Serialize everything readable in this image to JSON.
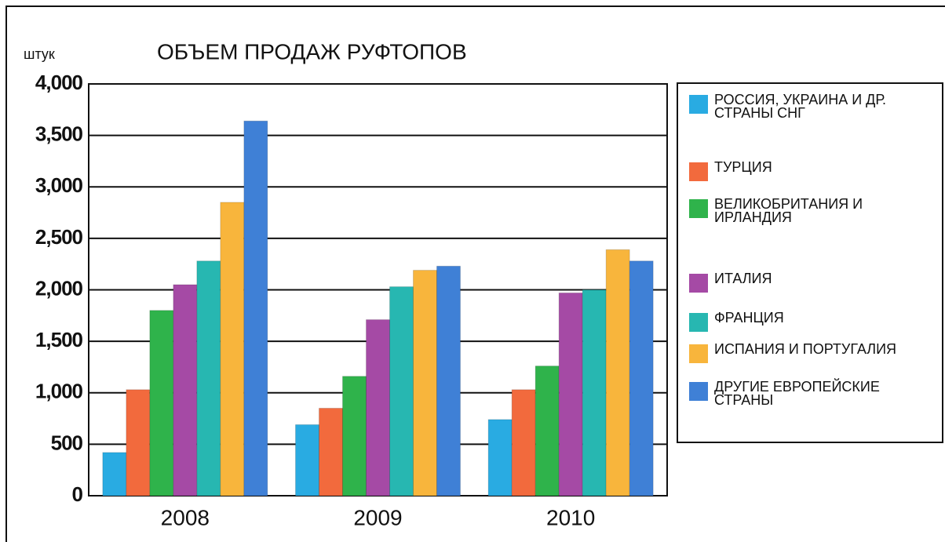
{
  "chart_data": {
    "type": "bar",
    "title": "ОБЪЕМ ПРОДАЖ РУФТОПОВ",
    "y_label": "штук",
    "categories": [
      "2008",
      "2009",
      "2010"
    ],
    "series": [
      {
        "name": "РОССИЯ, УКРАИНА И ДР. СТРАНЫ СНГ",
        "color": "#29abe2",
        "values": [
          420,
          690,
          740
        ]
      },
      {
        "name": "ТУРЦИЯ",
        "color": "#f26a3d",
        "values": [
          1030,
          850,
          1030
        ]
      },
      {
        "name": "ВЕЛИКОБРИТАНИЯ И ИРЛАНДИЯ",
        "color": "#2fb34b",
        "values": [
          1800,
          1160,
          1260
        ]
      },
      {
        "name": "ИТАЛИЯ",
        "color": "#a54aa5",
        "values": [
          2050,
          1710,
          1970
        ]
      },
      {
        "name": "ФРАНЦИЯ",
        "color": "#27b7b1",
        "values": [
          2280,
          2030,
          2000
        ]
      },
      {
        "name": "ИСПАНИЯ И ПОРТУГАЛИЯ",
        "color": "#f8b53c",
        "values": [
          2850,
          2190,
          2390
        ]
      },
      {
        "name": "ДРУГИЕ ЕВРОПЕЙСКИЕ СТРАНЫ",
        "color": "#3f80d6",
        "values": [
          3640,
          2230,
          2280
        ]
      }
    ],
    "ylim": [
      0,
      4000
    ],
    "yticks": [
      0,
      500,
      {
        "value": 1000,
        "label": "1,000"
      },
      {
        "value": 1500,
        "label": "1,500"
      },
      {
        "value": 2000,
        "label": "2,000"
      },
      {
        "value": 2500,
        "label": "2,500"
      },
      {
        "value": 3000,
        "label": "3,000"
      },
      {
        "value": 3500,
        "label": "3,500"
      },
      {
        "value": 4000,
        "label": "4,000"
      }
    ],
    "grid": true
  }
}
